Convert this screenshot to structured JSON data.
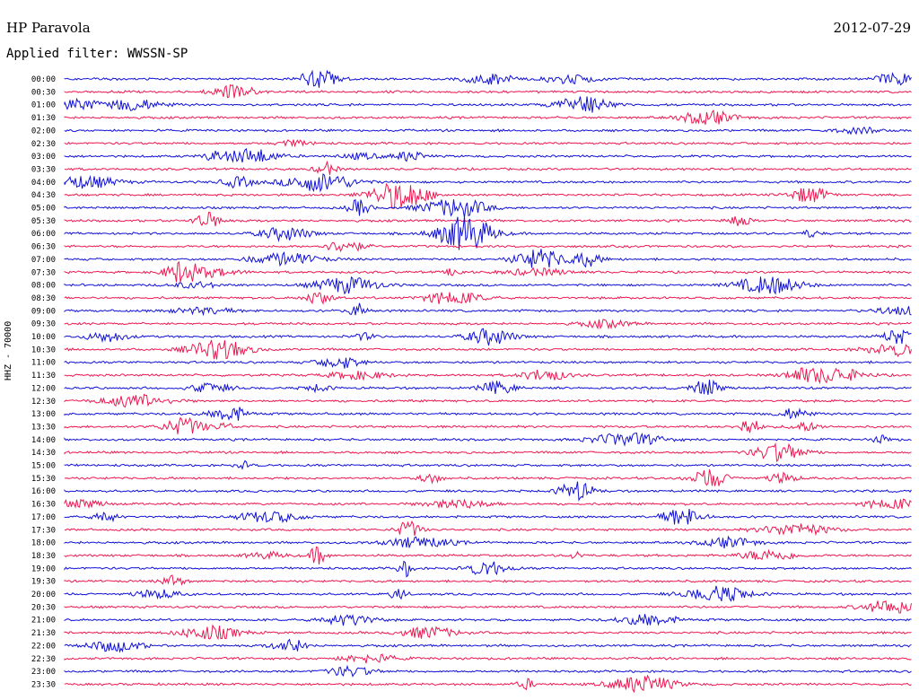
{
  "header": {
    "station": "HP Paravola",
    "date": "2012-07-29",
    "filter": "Applied filter: WWSSN-SP",
    "channel": "HHZ - 70000"
  },
  "colors": {
    "trace_a": "#1010d8",
    "trace_b": "#ee1750",
    "text": "#000000"
  },
  "chart_data": {
    "type": "line",
    "title": "HP Paravola",
    "subtitle": "Applied filter: WWSSN-SP",
    "date": "2012-07-29",
    "ylabel": "HHZ - 70000",
    "row_labels": [
      "00:00",
      "00:30",
      "01:00",
      "01:30",
      "02:00",
      "02:30",
      "03:00",
      "03:30",
      "04:00",
      "04:30",
      "05:00",
      "05:30",
      "06:00",
      "06:30",
      "07:00",
      "07:30",
      "08:00",
      "08:30",
      "09:00",
      "09:30",
      "10:00",
      "10:30",
      "11:00",
      "11:30",
      "12:00",
      "12:30",
      "13:00",
      "13:30",
      "14:00",
      "14:30",
      "15:00",
      "15:30",
      "16:00",
      "16:30",
      "17:00",
      "17:30",
      "18:00",
      "18:30",
      "19:00",
      "19:30",
      "20:00",
      "20:30",
      "21:00",
      "21:30",
      "22:00",
      "22:30",
      "23:00",
      "23:30"
    ],
    "row_colors": [
      "trace_a",
      "trace_b"
    ],
    "grid": false
  }
}
